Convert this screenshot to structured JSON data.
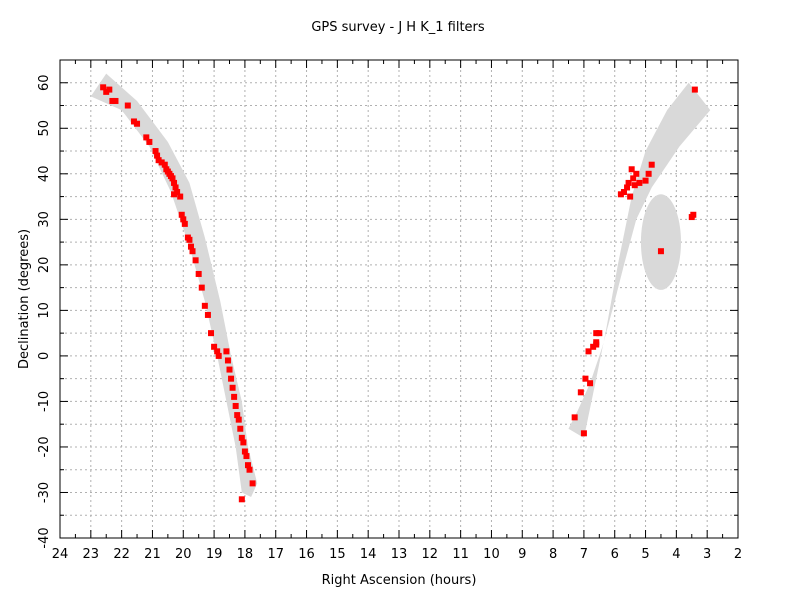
{
  "chart_data": {
    "type": "scatter",
    "title": "GPS survey - J H K_1  filters",
    "xlabel": "Right Ascension (hours)",
    "ylabel": "Declination (degrees)",
    "xlim": [
      24,
      2
    ],
    "ylim": [
      -40,
      65
    ],
    "x_reversed": true,
    "grid": true,
    "x_ticks": [
      24,
      23,
      22,
      21,
      20,
      19,
      18,
      17,
      16,
      15,
      14,
      13,
      12,
      11,
      10,
      9,
      8,
      7,
      6,
      5,
      4,
      3,
      2
    ],
    "y_ticks": [
      -40,
      -30,
      -20,
      -10,
      0,
      10,
      20,
      30,
      40,
      50,
      60
    ],
    "point_color": "#ff0000",
    "band_color": "#d9d9d9",
    "bands": [
      {
        "type": "polygon",
        "points": [
          [
            23.0,
            57
          ],
          [
            22.5,
            62
          ],
          [
            21.5,
            56
          ],
          [
            20.5,
            47
          ],
          [
            19.8,
            38
          ],
          [
            19.3,
            26
          ],
          [
            18.8,
            12
          ],
          [
            18.45,
            0
          ],
          [
            18.1,
            -10
          ],
          [
            17.9,
            -20
          ],
          [
            17.6,
            -28
          ],
          [
            17.8,
            -31
          ],
          [
            18.1,
            -30
          ],
          [
            18.3,
            -20
          ],
          [
            18.6,
            -10
          ],
          [
            18.9,
            0
          ],
          [
            19.3,
            12
          ],
          [
            19.8,
            24
          ],
          [
            20.4,
            36
          ],
          [
            21.1,
            46
          ],
          [
            22.0,
            54
          ]
        ]
      },
      {
        "type": "polygon",
        "points": [
          [
            7.5,
            -16
          ],
          [
            7.0,
            -18
          ],
          [
            6.6,
            -5
          ],
          [
            6.3,
            5
          ],
          [
            5.9,
            20
          ],
          [
            5.45,
            35
          ],
          [
            5.0,
            45
          ],
          [
            4.3,
            54
          ],
          [
            3.6,
            60
          ],
          [
            2.9,
            54
          ],
          [
            3.9,
            46
          ],
          [
            4.8,
            37
          ],
          [
            5.3,
            30
          ],
          [
            5.7,
            20
          ],
          [
            6.0,
            12
          ],
          [
            6.4,
            2
          ],
          [
            6.8,
            -6
          ],
          [
            7.2,
            -12
          ]
        ]
      },
      {
        "type": "ellipse",
        "cx": 4.5,
        "cy": 25,
        "rx": 0.65,
        "ry": 10.5
      }
    ],
    "series": [
      {
        "points": [
          [
            22.6,
            59
          ],
          [
            22.5,
            58
          ],
          [
            22.4,
            58.5
          ],
          [
            22.3,
            56
          ],
          [
            22.2,
            56
          ],
          [
            21.8,
            55
          ],
          [
            21.6,
            51.5
          ],
          [
            21.5,
            51
          ],
          [
            21.2,
            48
          ],
          [
            21.1,
            47
          ],
          [
            20.9,
            45
          ],
          [
            20.85,
            44
          ],
          [
            20.8,
            43
          ],
          [
            20.7,
            42.5
          ],
          [
            20.6,
            42
          ],
          [
            20.55,
            41
          ],
          [
            20.5,
            40.5
          ],
          [
            20.45,
            40
          ],
          [
            20.4,
            39.5
          ],
          [
            20.35,
            39
          ],
          [
            20.3,
            38
          ],
          [
            20.25,
            37
          ],
          [
            20.2,
            36
          ],
          [
            20.3,
            35.5
          ],
          [
            20.1,
            35
          ],
          [
            20.05,
            31
          ],
          [
            20.0,
            30
          ],
          [
            19.95,
            29
          ],
          [
            19.85,
            26
          ],
          [
            19.8,
            25.5
          ],
          [
            19.75,
            24
          ],
          [
            19.7,
            23
          ],
          [
            19.6,
            21
          ],
          [
            19.5,
            18
          ],
          [
            19.4,
            15
          ],
          [
            19.3,
            11
          ],
          [
            19.2,
            9
          ],
          [
            19.1,
            5
          ],
          [
            19.0,
            2
          ],
          [
            18.9,
            1
          ],
          [
            18.85,
            0
          ],
          [
            18.6,
            1
          ],
          [
            18.55,
            -1
          ],
          [
            18.5,
            -3
          ],
          [
            18.45,
            -5
          ],
          [
            18.4,
            -7
          ],
          [
            18.35,
            -9
          ],
          [
            18.3,
            -11
          ],
          [
            18.25,
            -13
          ],
          [
            18.2,
            -14
          ],
          [
            18.15,
            -16
          ],
          [
            18.1,
            -18
          ],
          [
            18.05,
            -19
          ],
          [
            18.0,
            -21
          ],
          [
            17.95,
            -22
          ],
          [
            17.9,
            -24
          ],
          [
            17.85,
            -25
          ],
          [
            17.75,
            -28
          ],
          [
            18.1,
            -31.5
          ]
        ]
      },
      {
        "points": [
          [
            7.3,
            -13.5
          ],
          [
            7.1,
            -8
          ],
          [
            7.0,
            -17
          ],
          [
            6.95,
            -5
          ],
          [
            6.8,
            -6
          ],
          [
            6.85,
            1
          ],
          [
            6.7,
            2
          ],
          [
            6.6,
            2.5
          ],
          [
            6.6,
            5
          ],
          [
            6.5,
            5
          ],
          [
            6.6,
            3
          ],
          [
            5.8,
            35.5
          ],
          [
            5.7,
            36
          ],
          [
            5.6,
            37
          ],
          [
            5.55,
            38
          ],
          [
            5.5,
            35
          ],
          [
            5.45,
            41
          ],
          [
            5.4,
            39
          ],
          [
            5.3,
            40
          ],
          [
            5.35,
            37.5
          ],
          [
            5.2,
            38
          ],
          [
            5.0,
            38.5
          ],
          [
            4.9,
            40
          ],
          [
            4.8,
            42
          ],
          [
            4.5,
            23
          ],
          [
            3.5,
            30.5
          ],
          [
            3.45,
            31
          ],
          [
            3.4,
            58.5
          ]
        ]
      }
    ]
  }
}
